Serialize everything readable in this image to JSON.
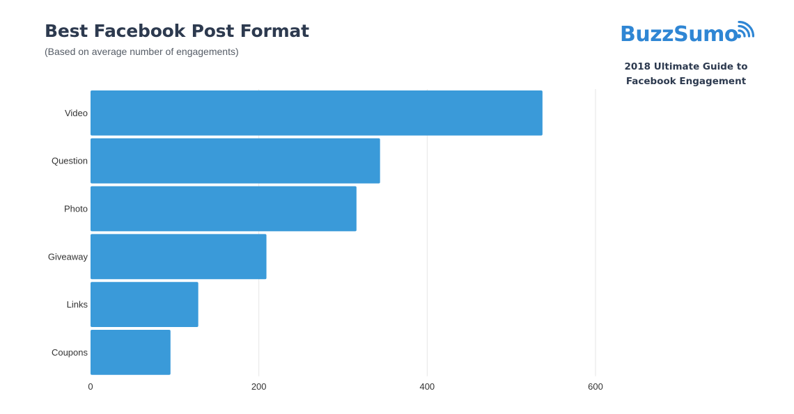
{
  "header": {
    "title": "Best Facebook Post Format",
    "subtitle": "(Based on average number of engagements)"
  },
  "brand": {
    "name": "BuzzSumo",
    "tagline_line1": "2018 Ultimate Guide to",
    "tagline_line2": "Facebook Engagement",
    "icon": "signal-waves-icon",
    "color": "#2f86d4"
  },
  "colors": {
    "bar": "#3a9ad9",
    "grid": "#e6e6e6",
    "text": "#333333"
  },
  "chart_data": {
    "type": "bar",
    "orientation": "horizontal",
    "title": "Best Facebook Post Format",
    "subtitle": "(Based on average number of engagements)",
    "categories": [
      "Video",
      "Question",
      "Photo",
      "Giveaway",
      "Links",
      "Coupons"
    ],
    "values": [
      537,
      344,
      316,
      209,
      128,
      95
    ],
    "xlabel": "",
    "ylabel": "",
    "xlim": [
      0,
      600
    ],
    "xticks": [
      0,
      200,
      400,
      600
    ],
    "grid": true
  }
}
